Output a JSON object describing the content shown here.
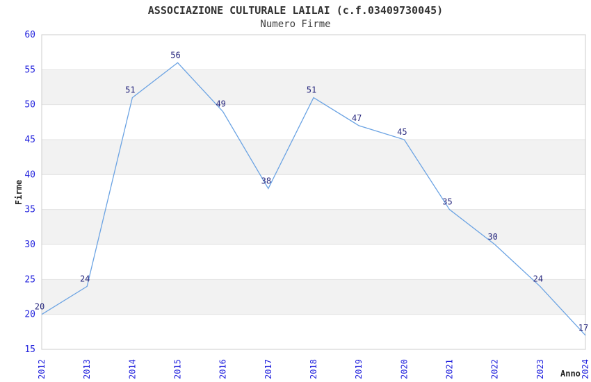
{
  "page": {
    "title": "ASSOCIAZIONE CULTURALE LAILAI (c.f.03409730045)",
    "subtitle": "Numero Firme"
  },
  "chart_data": {
    "type": "line",
    "title": "ASSOCIAZIONE CULTURALE LAILAI (c.f.03409730045)",
    "subtitle": "Numero Firme",
    "x": [
      "2012",
      "2013",
      "2014",
      "2015",
      "2016",
      "2017",
      "2018",
      "2019",
      "2020",
      "2021",
      "2022",
      "2023",
      "2024"
    ],
    "series": [
      {
        "name": "Numero Firme",
        "values": [
          20,
          24,
          51,
          56,
          49,
          38,
          51,
          47,
          45,
          35,
          30,
          24,
          17
        ]
      }
    ],
    "xlabel": "Anno",
    "ylabel": "Firme",
    "ylim": [
      15,
      60
    ],
    "ytick_step": 5,
    "yticks": [
      15,
      20,
      25,
      30,
      35,
      40,
      45,
      50,
      55,
      60
    ],
    "grid": true,
    "alternating_bands": true,
    "legend_position": "none",
    "point_labels": true,
    "colors": {
      "line": "#6BA3E3",
      "band": "#F2F2F2",
      "grid": "#E3E3E3",
      "border": "#CCCCCC",
      "tick_label": "#2222DD",
      "point_label": "#28287E",
      "title_text": "#333333"
    }
  }
}
